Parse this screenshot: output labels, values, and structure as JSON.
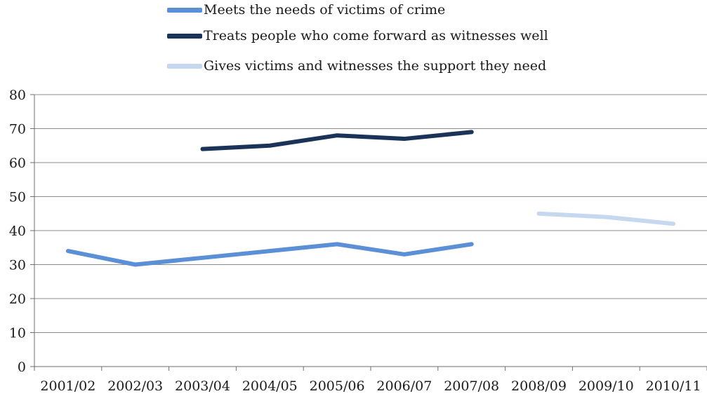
{
  "chart_data": {
    "type": "line",
    "title": "",
    "xlabel": "",
    "ylabel": "",
    "categories": [
      "2001/02",
      "2002/03",
      "2003/04",
      "2004/05",
      "2005/06",
      "2006/07",
      "2007/08",
      "2008/09",
      "2009/10",
      "2010/11"
    ],
    "ylim": [
      0,
      80
    ],
    "yticks": [
      0,
      10,
      20,
      30,
      40,
      50,
      60,
      70,
      80
    ],
    "grid": true,
    "legend_position": "top",
    "series": [
      {
        "name": "Meets the needs of victims of crime",
        "color": "#5b8fd6",
        "values": [
          34,
          30,
          32,
          34,
          36,
          33,
          36,
          null,
          null,
          null
        ]
      },
      {
        "name": "Treats people who come forward as witnesses well",
        "color": "#1b3358",
        "values": [
          null,
          null,
          64,
          65,
          68,
          67,
          69,
          null,
          null,
          null
        ]
      },
      {
        "name": "Gives victims and witnesses the support they need",
        "color": "#c6d8f0",
        "values": [
          null,
          null,
          null,
          null,
          null,
          null,
          null,
          45,
          44,
          42
        ]
      }
    ]
  }
}
